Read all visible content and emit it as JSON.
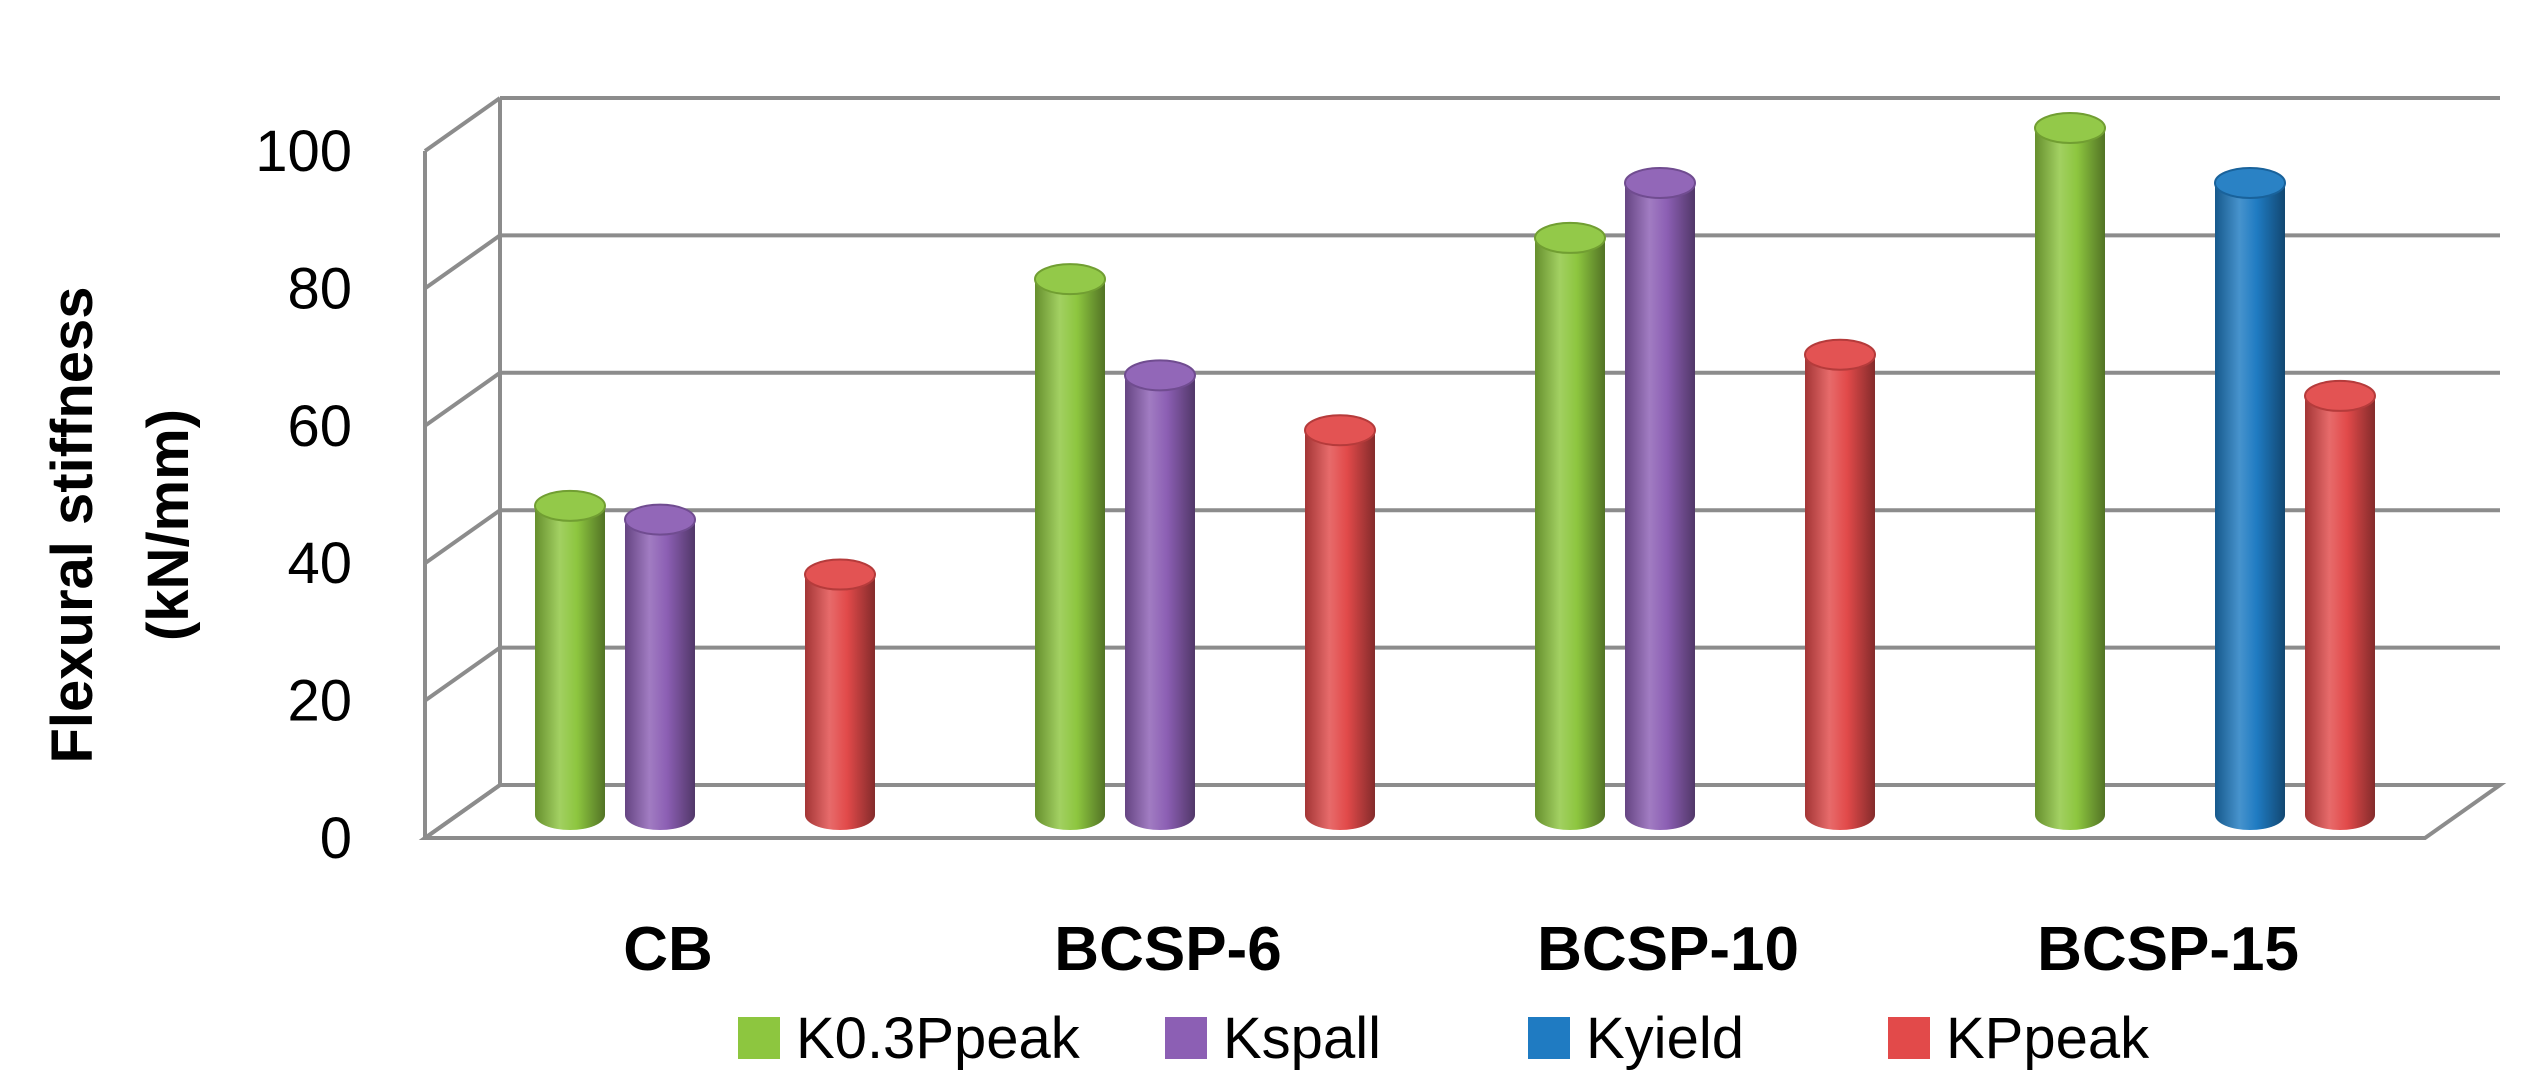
{
  "chart_data": {
    "type": "bar",
    "style": "3d-cylinder",
    "categories": [
      "CB",
      "BCSP-6",
      "BCSP-10",
      "BCSP-15"
    ],
    "series": [
      {
        "name": "K0.3Ppeak",
        "color": "#8dc63f",
        "values": [
          45,
          78,
          84,
          100
        ]
      },
      {
        "name": "Kspall",
        "color": "#8c5fb4",
        "values": [
          43,
          64,
          92,
          null
        ]
      },
      {
        "name": "Kyield",
        "color": "#1f7bc2",
        "values": [
          null,
          null,
          null,
          92
        ]
      },
      {
        "name": "KPpeak",
        "color": "#e24a4a",
        "values": [
          35,
          56,
          67,
          61
        ]
      }
    ],
    "ylabel_lines": [
      "Flexural stiffness",
      "(kN/mm)"
    ],
    "ylim": [
      0,
      100
    ],
    "yticks": [
      0,
      20,
      40,
      60,
      80,
      100
    ],
    "grid": true,
    "legend": "bottom"
  }
}
